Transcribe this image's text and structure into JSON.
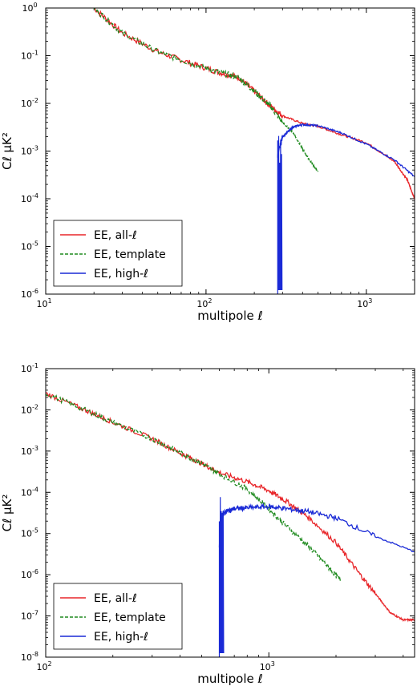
{
  "chart_data": [
    {
      "type": "line",
      "title": "",
      "xlabel": "multipole ℓ",
      "ylabel": "Cℓ μK²",
      "xscale": "log",
      "yscale": "log",
      "xlim": [
        10,
        2000
      ],
      "ylim": [
        1e-06,
        1
      ],
      "x_ticks": [
        {
          "value": 10,
          "label": "10",
          "exp": "1"
        },
        {
          "value": 100,
          "label": "10",
          "exp": "2"
        },
        {
          "value": 1000,
          "label": "10",
          "exp": "3"
        }
      ],
      "y_ticks": [
        {
          "value": 1,
          "label": "10",
          "exp": "0"
        },
        {
          "value": 0.1,
          "label": "10",
          "exp": "-1"
        },
        {
          "value": 0.01,
          "label": "10",
          "exp": "-2"
        },
        {
          "value": 0.001,
          "label": "10",
          "exp": "-3"
        },
        {
          "value": 0.0001,
          "label": "10",
          "exp": "-4"
        },
        {
          "value": 1e-05,
          "label": "10",
          "exp": "-5"
        },
        {
          "value": 1e-06,
          "label": "10",
          "exp": "-6"
        }
      ],
      "legend": {
        "position": "lower-left"
      },
      "series": [
        {
          "name": "EE, all-ℓ",
          "color": "#e8262a",
          "dash": "solid",
          "x": [
            20,
            30,
            50,
            80,
            120,
            160,
            200,
            250,
            300,
            400,
            500,
            700,
            1000,
            1500,
            1800,
            2000
          ],
          "y": [
            1.0,
            0.3,
            0.12,
            0.07,
            0.045,
            0.035,
            0.018,
            0.009,
            0.0055,
            0.0038,
            0.0033,
            0.0022,
            0.0015,
            0.0006,
            0.00025,
            0.0001
          ]
        },
        {
          "name": "EE, template",
          "color": "#1e8a1e",
          "dash": "dashed",
          "x": [
            20,
            30,
            50,
            80,
            120,
            160,
            200,
            250,
            300,
            350,
            400,
            450,
            500
          ],
          "y": [
            1.0,
            0.3,
            0.12,
            0.07,
            0.045,
            0.035,
            0.018,
            0.009,
            0.004,
            0.0024,
            0.0011,
            0.0006,
            0.00037
          ]
        },
        {
          "name": "EE, high-ℓ",
          "color": "#1a2ad6",
          "dash": "solid",
          "x": [
            280,
            300,
            350,
            400,
            500,
            700,
            1000,
            1500,
            2000
          ],
          "y": [
            0.0008,
            0.002,
            0.0032,
            0.0036,
            0.0034,
            0.0024,
            0.0014,
            0.00065,
            0.00029
          ]
        }
      ]
    },
    {
      "type": "line",
      "title": "",
      "xlabel": "multipole ℓ",
      "ylabel": "Cℓ μK²",
      "xscale": "log",
      "yscale": "log",
      "xlim": [
        100,
        4500
      ],
      "ylim": [
        1e-08,
        0.1
      ],
      "x_ticks": [
        {
          "value": 100,
          "label": "10",
          "exp": "2"
        },
        {
          "value": 1000,
          "label": "10",
          "exp": "3"
        }
      ],
      "y_ticks": [
        {
          "value": 0.1,
          "label": "10",
          "exp": "-1"
        },
        {
          "value": 0.01,
          "label": "10",
          "exp": "-2"
        },
        {
          "value": 0.001,
          "label": "10",
          "exp": "-3"
        },
        {
          "value": 0.0001,
          "label": "10",
          "exp": "-4"
        },
        {
          "value": 1e-05,
          "label": "10",
          "exp": "-5"
        },
        {
          "value": 1e-06,
          "label": "10",
          "exp": "-6"
        },
        {
          "value": 1e-07,
          "label": "10",
          "exp": "-7"
        },
        {
          "value": 1e-08,
          "label": "10",
          "exp": "-8"
        }
      ],
      "legend": {
        "position": "lower-left"
      },
      "series": [
        {
          "name": "EE, all-ℓ",
          "color": "#e8262a",
          "dash": "solid",
          "x": [
            100,
            150,
            200,
            300,
            400,
            500,
            600,
            800,
            1000,
            1200,
            1500,
            2000,
            2500,
            3000,
            3500,
            4000,
            4500
          ],
          "y": [
            0.025,
            0.01,
            0.005,
            0.002,
            0.0009,
            0.0005,
            0.0003,
            0.00018,
            0.00011,
            6e-05,
            2.5e-05,
            6e-06,
            1.2e-06,
            3.5e-07,
            1.2e-07,
            8e-08,
            8e-08
          ]
        },
        {
          "name": "EE, template",
          "color": "#1e8a1e",
          "dash": "dashed",
          "x": [
            100,
            150,
            200,
            300,
            400,
            500,
            600,
            800,
            1000,
            1200,
            1500,
            1800,
            2100
          ],
          "y": [
            0.025,
            0.01,
            0.005,
            0.002,
            0.0009,
            0.0005,
            0.00028,
            0.00012,
            4e-05,
            1.5e-05,
            5e-06,
            1.8e-06,
            7e-07
          ]
        },
        {
          "name": "EE, high-ℓ",
          "color": "#1a2ad6",
          "dash": "solid",
          "x": [
            600,
            620,
            650,
            700,
            800,
            1000,
            1200,
            1500,
            2000,
            3000,
            4500
          ],
          "y": [
            5e-06,
            3e-05,
            3.5e-05,
            4e-05,
            4.2e-05,
            4.5e-05,
            4e-05,
            3.4e-05,
            2.4e-05,
            8.5e-06,
            3.6e-06
          ]
        }
      ]
    }
  ]
}
